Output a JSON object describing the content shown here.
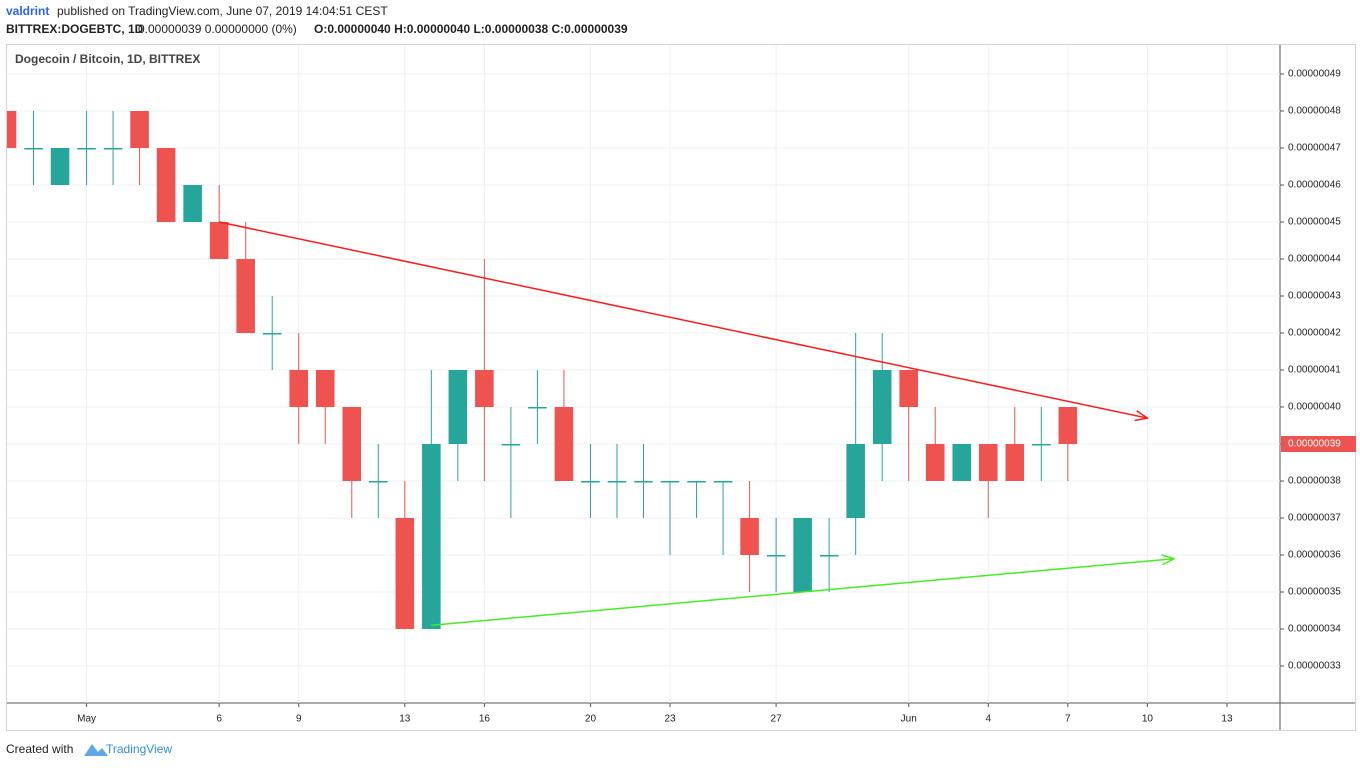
{
  "header": {
    "author": "valdrint",
    "published": "published on TradingView.com, June 07, 2019 14:04:51 CEST",
    "symbol": "BITTREX:DOGEBTC, 1D",
    "change": "0.00000039 0.00000000 (0%)",
    "ohlc": "O:0.00000040 H:0.00000040 L:0.00000038 C:0.00000039"
  },
  "footer": {
    "created": "Created with",
    "brand": "TradingView"
  },
  "chart_data": {
    "type": "candlestick",
    "title": "Dogecoin / Bitcoin, 1D, BITTREX",
    "up_color": "#26a69a",
    "down_color": "#ef5350",
    "grid": true,
    "x": [
      "2019-04-28",
      "2019-04-29",
      "2019-04-30",
      "2019-05-01",
      "2019-05-02",
      "2019-05-03",
      "2019-05-04",
      "2019-05-05",
      "2019-05-06",
      "2019-05-07",
      "2019-05-08",
      "2019-05-09",
      "2019-05-10",
      "2019-05-11",
      "2019-05-12",
      "2019-05-13",
      "2019-05-14",
      "2019-05-15",
      "2019-05-16",
      "2019-05-17",
      "2019-05-18",
      "2019-05-19",
      "2019-05-20",
      "2019-05-21",
      "2019-05-22",
      "2019-05-23",
      "2019-05-24",
      "2019-05-25",
      "2019-05-26",
      "2019-05-27",
      "2019-05-28",
      "2019-05-29",
      "2019-05-30",
      "2019-05-31",
      "2019-06-01",
      "2019-06-02",
      "2019-06-03",
      "2019-06-04",
      "2019-06-05",
      "2019-06-06",
      "2019-06-07"
    ],
    "open": [
      4.8e-07,
      4.7e-07,
      4.6e-07,
      4.7e-07,
      4.7e-07,
      4.8e-07,
      4.7e-07,
      4.5e-07,
      4.5e-07,
      4.4e-07,
      4.2e-07,
      4.1e-07,
      4.1e-07,
      4e-07,
      3.8e-07,
      3.7e-07,
      3.4e-07,
      3.9e-07,
      4.1e-07,
      3.9e-07,
      4e-07,
      4e-07,
      3.8e-07,
      3.8e-07,
      3.8e-07,
      3.8e-07,
      3.8e-07,
      3.8e-07,
      3.7e-07,
      3.6e-07,
      3.5e-07,
      3.6e-07,
      3.7e-07,
      3.9e-07,
      4.1e-07,
      3.9e-07,
      3.8e-07,
      3.9e-07,
      3.9e-07,
      3.9e-07,
      4e-07
    ],
    "high": [
      4.8e-07,
      4.8e-07,
      4.7e-07,
      4.8e-07,
      4.8e-07,
      4.8e-07,
      4.7e-07,
      4.6e-07,
      4.6e-07,
      4.5e-07,
      4.3e-07,
      4.2e-07,
      4.1e-07,
      4e-07,
      3.9e-07,
      3.8e-07,
      4.1e-07,
      4.1e-07,
      4.4e-07,
      4e-07,
      4.1e-07,
      4.1e-07,
      3.9e-07,
      3.9e-07,
      3.9e-07,
      3.8e-07,
      3.8e-07,
      3.8e-07,
      3.8e-07,
      3.7e-07,
      3.7e-07,
      3.7e-07,
      4.2e-07,
      4.2e-07,
      4.1e-07,
      4e-07,
      3.9e-07,
      3.9e-07,
      4e-07,
      4e-07,
      4e-07
    ],
    "low": [
      4.7e-07,
      4.6e-07,
      4.6e-07,
      4.6e-07,
      4.6e-07,
      4.6e-07,
      4.5e-07,
      4.5e-07,
      4.4e-07,
      4.2e-07,
      4.1e-07,
      3.9e-07,
      3.9e-07,
      3.7e-07,
      3.7e-07,
      3.4e-07,
      3.4e-07,
      3.8e-07,
      3.8e-07,
      3.7e-07,
      3.9e-07,
      3.8e-07,
      3.7e-07,
      3.7e-07,
      3.7e-07,
      3.6e-07,
      3.7e-07,
      3.6e-07,
      3.5e-07,
      3.5e-07,
      3.5e-07,
      3.5e-07,
      3.6e-07,
      3.8e-07,
      3.8e-07,
      3.8e-07,
      3.8e-07,
      3.7e-07,
      3.8e-07,
      3.8e-07,
      3.8e-07
    ],
    "close": [
      4.7e-07,
      4.7e-07,
      4.7e-07,
      4.7e-07,
      4.7e-07,
      4.7e-07,
      4.5e-07,
      4.6e-07,
      4.4e-07,
      4.2e-07,
      4.2e-07,
      4e-07,
      4e-07,
      3.8e-07,
      3.8e-07,
      3.4e-07,
      3.9e-07,
      4.1e-07,
      4e-07,
      3.9e-07,
      4e-07,
      3.8e-07,
      3.8e-07,
      3.8e-07,
      3.8e-07,
      3.8e-07,
      3.8e-07,
      3.8e-07,
      3.6e-07,
      3.6e-07,
      3.7e-07,
      3.6e-07,
      3.9e-07,
      4.1e-07,
      4e-07,
      3.8e-07,
      3.9e-07,
      3.8e-07,
      3.8e-07,
      3.9e-07,
      3.9e-07
    ],
    "trendlines": [
      {
        "color": "#ff1a1a",
        "x": [
          "2019-05-06",
          "2019-06-10"
        ],
        "y": [
          4.5e-07,
          3.97e-07
        ]
      },
      {
        "color": "#44ee22",
        "x": [
          "2019-05-14",
          "2019-06-11"
        ],
        "y": [
          3.41e-07,
          3.59e-07
        ]
      }
    ],
    "last_price": {
      "value": 3.9e-07,
      "label": "0.00000039"
    },
    "xlim": [
      "2019-04-28",
      "2019-06-15"
    ],
    "xticks": [
      {
        "value": "2019-05-01",
        "label": "May"
      },
      {
        "value": "2019-05-06",
        "label": "6"
      },
      {
        "value": "2019-05-09",
        "label": "9"
      },
      {
        "value": "2019-05-13",
        "label": "13"
      },
      {
        "value": "2019-05-16",
        "label": "16"
      },
      {
        "value": "2019-05-20",
        "label": "20"
      },
      {
        "value": "2019-05-23",
        "label": "23"
      },
      {
        "value": "2019-05-27",
        "label": "27"
      },
      {
        "value": "2019-06-01",
        "label": "Jun"
      },
      {
        "value": "2019-06-04",
        "label": "4"
      },
      {
        "value": "2019-06-07",
        "label": "7"
      },
      {
        "value": "2019-06-10",
        "label": "10"
      },
      {
        "value": "2019-06-13",
        "label": "13"
      }
    ],
    "ylim": [
      3.2e-07,
      5e-07
    ],
    "yticks": [
      {
        "value": 3.3e-07,
        "label": "0.00000033"
      },
      {
        "value": 3.4e-07,
        "label": "0.00000034"
      },
      {
        "value": 3.5e-07,
        "label": "0.00000035"
      },
      {
        "value": 3.6e-07,
        "label": "0.00000036"
      },
      {
        "value": 3.7e-07,
        "label": "0.00000037"
      },
      {
        "value": 3.8e-07,
        "label": "0.00000038"
      },
      {
        "value": 3.9e-07,
        "label": "0.00000039"
      },
      {
        "value": 4e-07,
        "label": "0.00000040"
      },
      {
        "value": 4.1e-07,
        "label": "0.00000041"
      },
      {
        "value": 4.2e-07,
        "label": "0.00000042"
      },
      {
        "value": 4.3e-07,
        "label": "0.00000043"
      },
      {
        "value": 4.4e-07,
        "label": "0.00000044"
      },
      {
        "value": 4.5e-07,
        "label": "0.00000045"
      },
      {
        "value": 4.6e-07,
        "label": "0.00000046"
      },
      {
        "value": 4.7e-07,
        "label": "0.00000047"
      },
      {
        "value": 4.8e-07,
        "label": "0.00000048"
      },
      {
        "value": 4.9e-07,
        "label": "0.00000049"
      }
    ]
  }
}
